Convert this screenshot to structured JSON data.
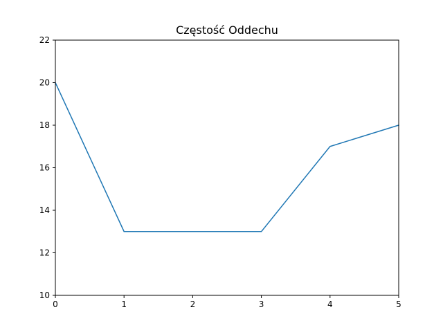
{
  "chart_data": {
    "type": "line",
    "title": "Częstość Oddechu",
    "xlabel": "",
    "ylabel": "",
    "x": [
      0,
      1,
      2,
      3,
      4,
      5
    ],
    "series": [
      {
        "values": [
          20,
          13,
          13,
          13,
          17,
          18
        ],
        "color": "#1f77b4"
      }
    ],
    "xlim": [
      0,
      5
    ],
    "ylim": [
      10,
      22
    ],
    "xticks": [
      0,
      1,
      2,
      3,
      4,
      5
    ],
    "yticks": [
      10,
      12,
      14,
      16,
      18,
      20,
      22
    ],
    "grid": false,
    "legend": "none"
  }
}
